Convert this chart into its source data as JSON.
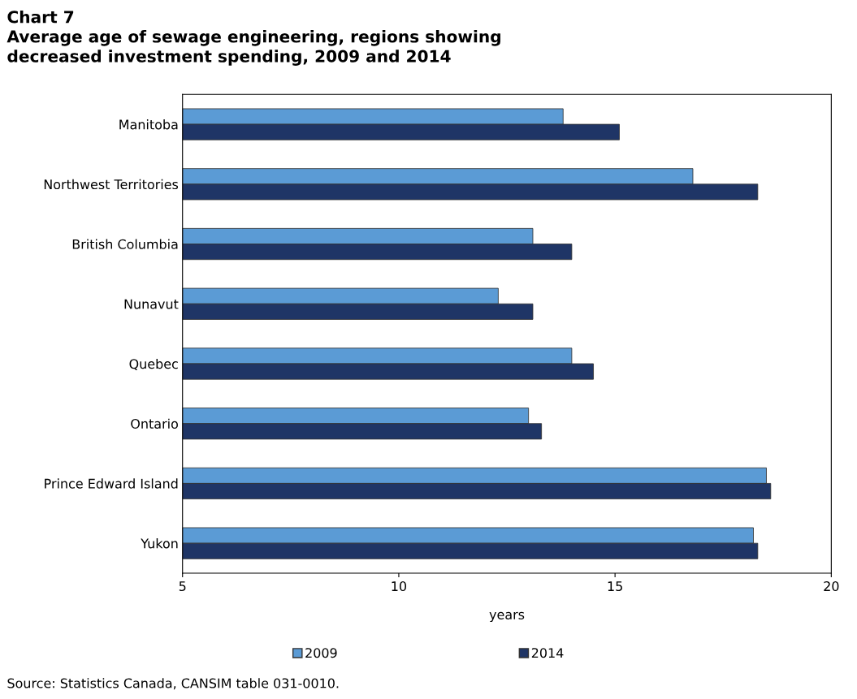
{
  "chart_data": {
    "type": "bar",
    "orientation": "horizontal",
    "title": "Chart 7\nAverage age of sewage engineering, regions showing\ndecreased investment spending, 2009 and 2014",
    "xlabel": "years",
    "categories": [
      "Manitoba",
      "Northwest Territories",
      "British Columbia",
      "Nunavut",
      "Quebec",
      "Ontario",
      "Prince Edward Island",
      "Yukon"
    ],
    "series": [
      {
        "name": "2009",
        "color": "#5b9bd5",
        "values": [
          13.8,
          16.8,
          13.1,
          12.3,
          14.0,
          13.0,
          18.5,
          18.2
        ]
      },
      {
        "name": "2014",
        "color": "#1f3566",
        "values": [
          15.1,
          18.3,
          14.0,
          13.1,
          14.5,
          13.3,
          18.6,
          18.3
        ]
      }
    ],
    "xlim": [
      5,
      20
    ],
    "xticks": [
      5,
      10,
      15,
      20
    ],
    "grid": false,
    "legend": "bottom",
    "annotations": [
      "Source: Statistics Canada, CANSIM table 031-0010."
    ]
  }
}
